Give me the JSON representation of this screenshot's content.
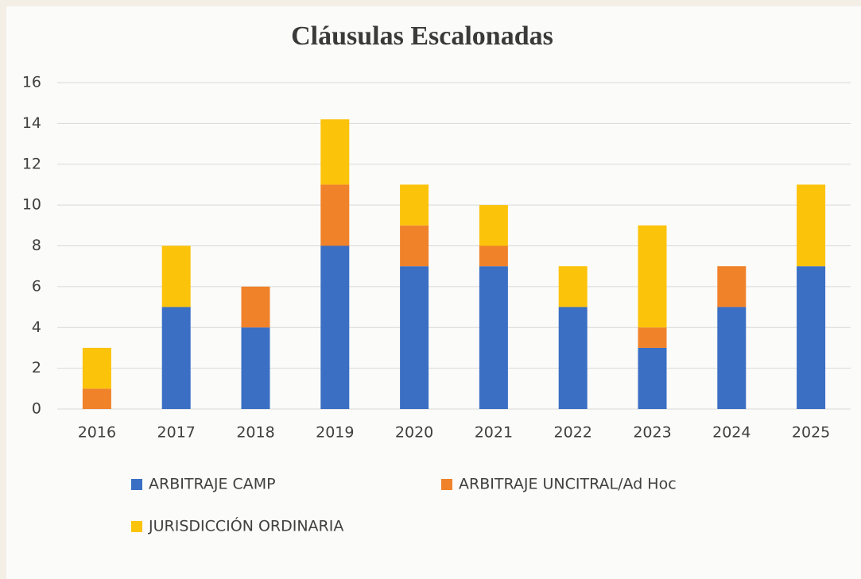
{
  "chart_data": {
    "type": "stacked_bar",
    "title": "Cláusulas Escalonadas",
    "categories": [
      "2016",
      "2017",
      "2018",
      "2019",
      "2020",
      "2021",
      "2022",
      "2023",
      "2024",
      "2025"
    ],
    "series": [
      {
        "name": "ARBITRAJE CAMP",
        "color": "#3a6fc4",
        "values": [
          0,
          5,
          4,
          8,
          7,
          7,
          5,
          3,
          5,
          7
        ]
      },
      {
        "name": "ARBITRAJE UNCITRAL/Ad Hoc",
        "color": "#f0822a",
        "values": [
          1,
          0,
          2,
          3,
          2,
          1,
          0,
          1,
          2,
          0
        ]
      },
      {
        "name": "JURISDICCIÓN ORDINARIA",
        "color": "#fcc30b",
        "values": [
          2,
          3,
          0,
          3.2,
          2,
          2,
          2,
          5,
          0,
          4
        ]
      }
    ],
    "ylim": [
      0,
      16
    ],
    "yticks": [
      0,
      2,
      4,
      6,
      8,
      10,
      12,
      14,
      16
    ],
    "grid": true
  }
}
